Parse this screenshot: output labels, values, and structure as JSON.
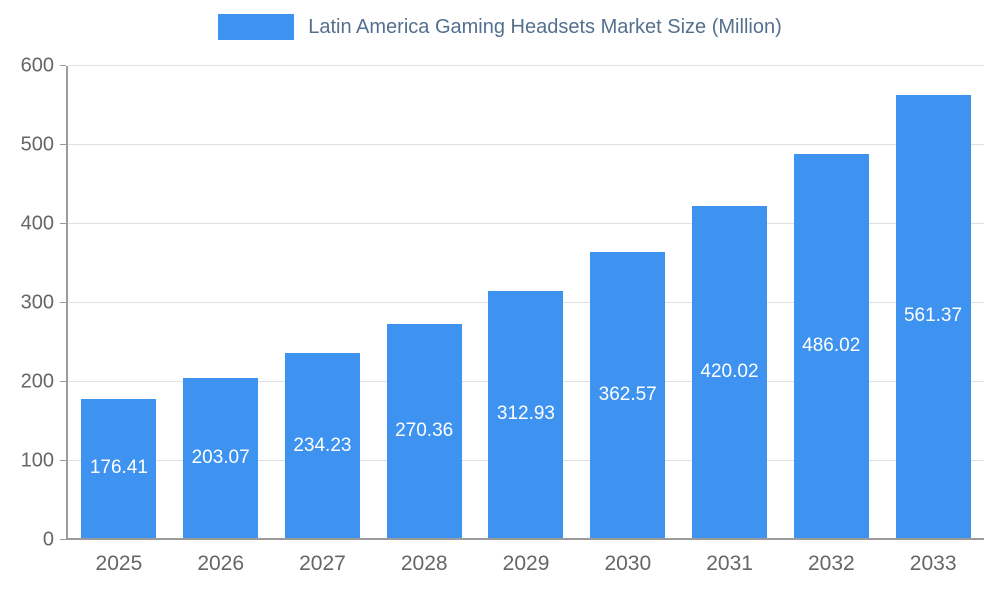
{
  "legend": {
    "label": "Latin America Gaming Headsets Market Size (Million)"
  },
  "chart_data": {
    "type": "bar",
    "title": "Latin America Gaming Headsets Market Size (Million)",
    "categories": [
      "2025",
      "2026",
      "2027",
      "2028",
      "2029",
      "2030",
      "2031",
      "2032",
      "2033"
    ],
    "values": [
      176.41,
      203.07,
      234.23,
      270.36,
      312.93,
      362.57,
      420.02,
      486.02,
      561.37
    ],
    "value_labels": [
      "176.41",
      "203.07",
      "234.23",
      "270.36",
      "312.93",
      "362.57",
      "420.02",
      "486.02",
      "561.37"
    ],
    "xlabel": "",
    "ylabel": "",
    "ylim": [
      0,
      600
    ],
    "yticks": [
      0,
      100,
      200,
      300,
      400,
      500,
      600
    ],
    "grid": true,
    "legend_position": "top",
    "colors": {
      "bar": "#3e93f0",
      "bar_label": "#ffffff",
      "title_text": "#54708e",
      "tick_text": "#666666",
      "gridline": "#e0e0e0",
      "axis_line": "#9b9b9b",
      "background": "#ffffff"
    }
  }
}
